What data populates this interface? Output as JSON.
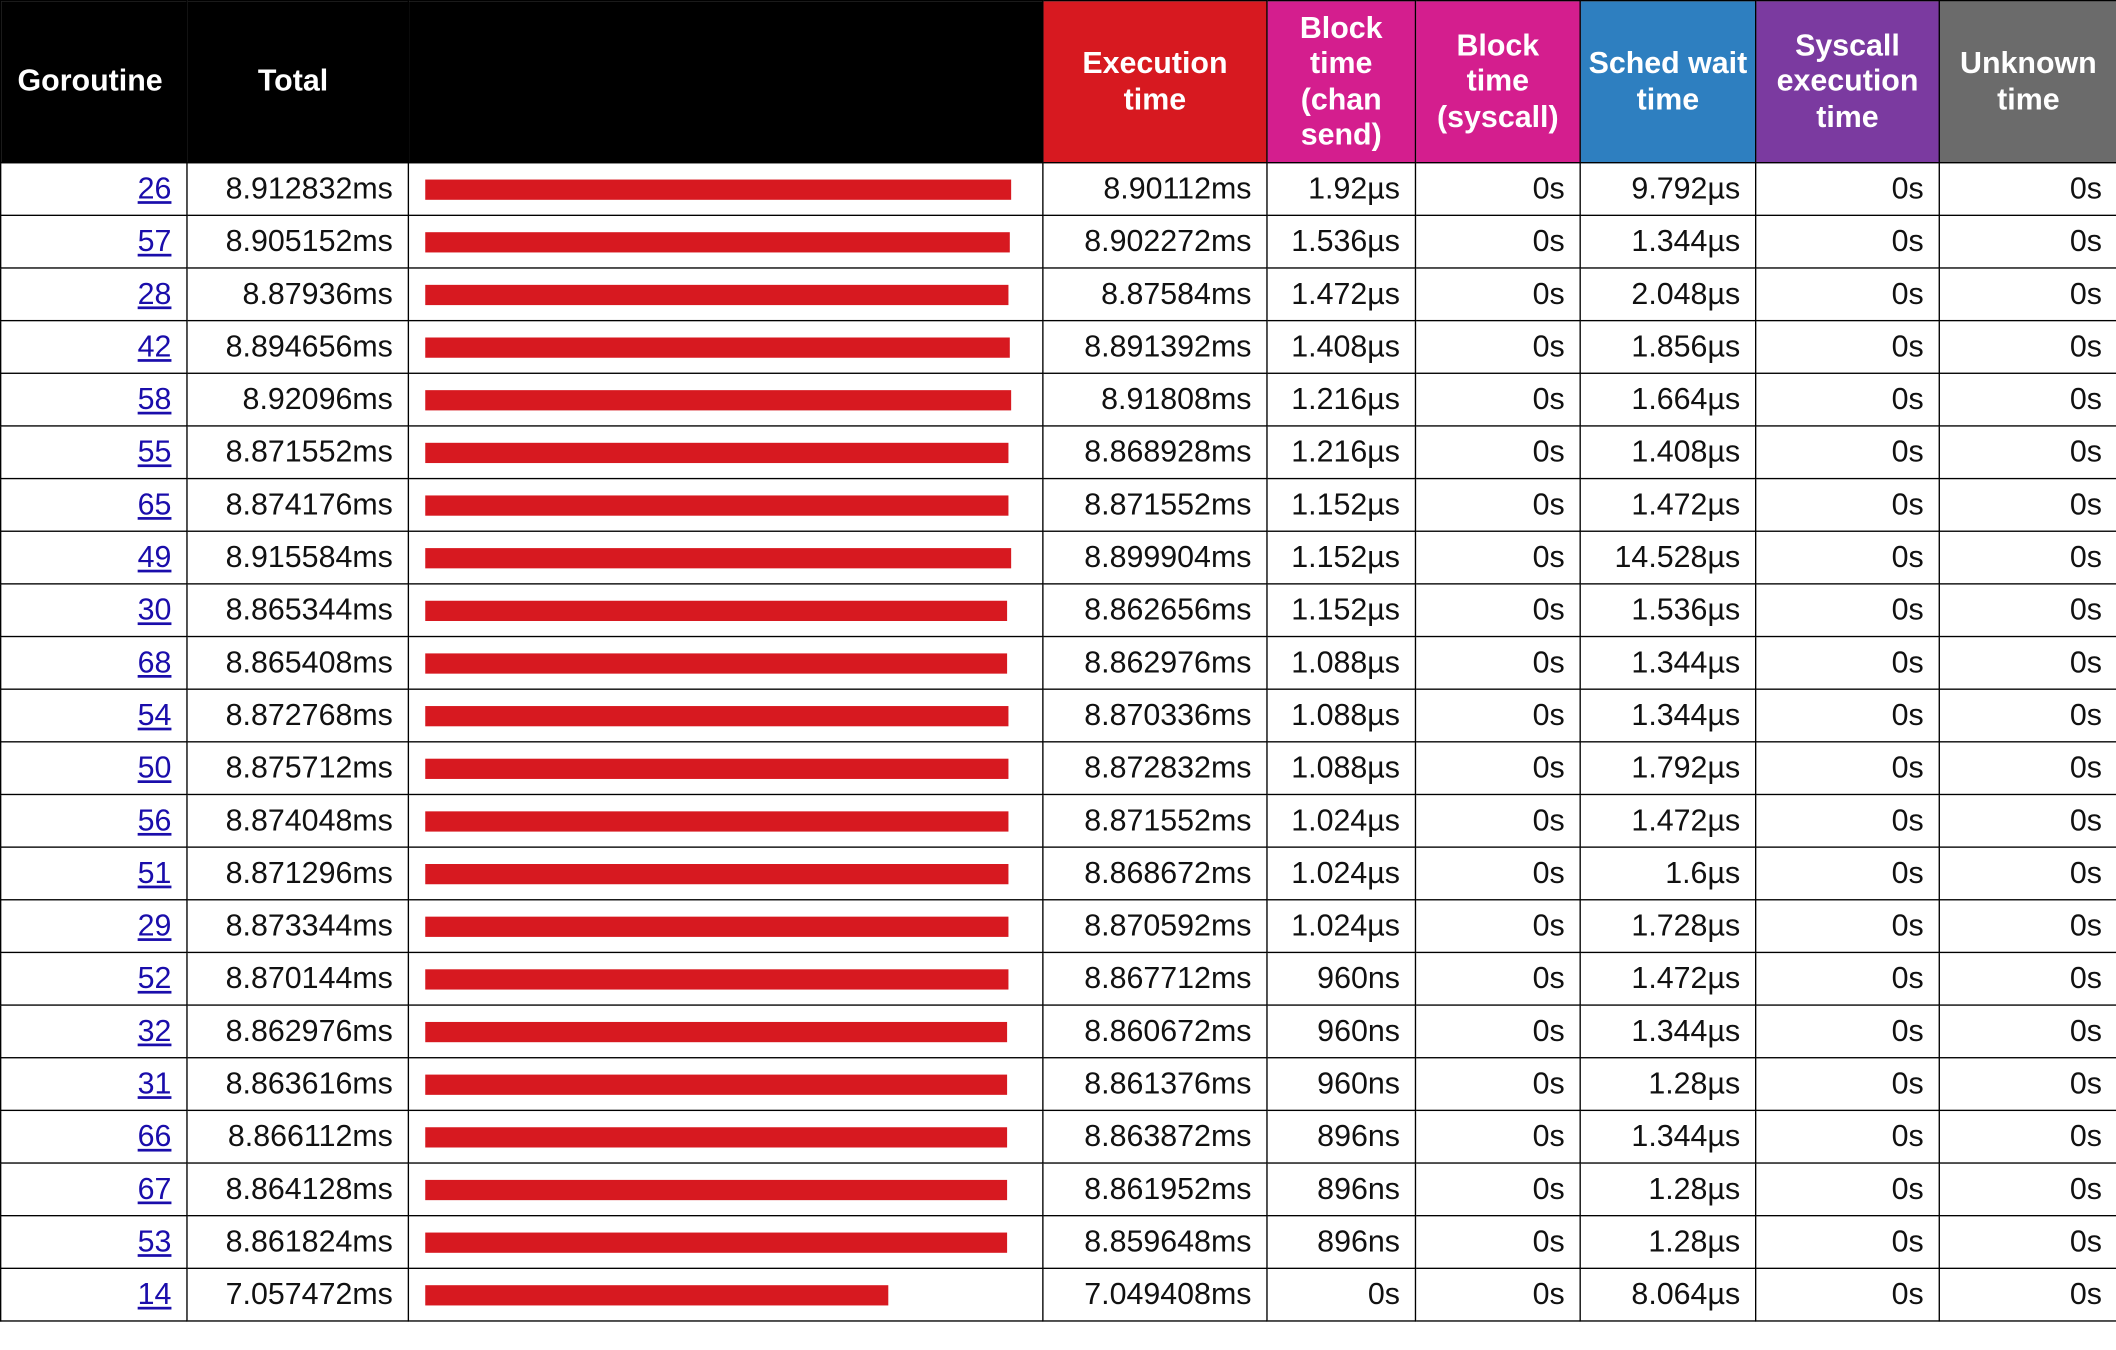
{
  "header": {
    "goroutine": "Goroutine",
    "total": "Total",
    "execution_time": "Execution time",
    "block_chan_send": "Block time (chan send)",
    "block_syscall": "Block time (syscall)",
    "sched_wait": "Sched wait time",
    "syscall_execution": "Syscall execution time",
    "unknown": "Unknown time"
  },
  "colors": {
    "execution": "#d71920",
    "block_chan_send": "#d41e8e",
    "block_syscall": "#d41e8e",
    "sched_wait": "#2e7fc0",
    "syscall_execution": "#7b3aa0",
    "unknown": "#6b6b6b",
    "header_bg": "#000000",
    "bar": "#d71920"
  },
  "rows": [
    {
      "id": "26",
      "total": "8.912832ms",
      "exec": "8.90112ms",
      "block_chan": "1.92µs",
      "block_syscall": "0s",
      "sched": "9.792µs",
      "syscall": "0s",
      "unknown": "0s",
      "bar_ms": 8.912832
    },
    {
      "id": "57",
      "total": "8.905152ms",
      "exec": "8.902272ms",
      "block_chan": "1.536µs",
      "block_syscall": "0s",
      "sched": "1.344µs",
      "syscall": "0s",
      "unknown": "0s",
      "bar_ms": 8.905152
    },
    {
      "id": "28",
      "total": "8.87936ms",
      "exec": "8.87584ms",
      "block_chan": "1.472µs",
      "block_syscall": "0s",
      "sched": "2.048µs",
      "syscall": "0s",
      "unknown": "0s",
      "bar_ms": 8.87936
    },
    {
      "id": "42",
      "total": "8.894656ms",
      "exec": "8.891392ms",
      "block_chan": "1.408µs",
      "block_syscall": "0s",
      "sched": "1.856µs",
      "syscall": "0s",
      "unknown": "0s",
      "bar_ms": 8.894656
    },
    {
      "id": "58",
      "total": "8.92096ms",
      "exec": "8.91808ms",
      "block_chan": "1.216µs",
      "block_syscall": "0s",
      "sched": "1.664µs",
      "syscall": "0s",
      "unknown": "0s",
      "bar_ms": 8.92096
    },
    {
      "id": "55",
      "total": "8.871552ms",
      "exec": "8.868928ms",
      "block_chan": "1.216µs",
      "block_syscall": "0s",
      "sched": "1.408µs",
      "syscall": "0s",
      "unknown": "0s",
      "bar_ms": 8.871552
    },
    {
      "id": "65",
      "total": "8.874176ms",
      "exec": "8.871552ms",
      "block_chan": "1.152µs",
      "block_syscall": "0s",
      "sched": "1.472µs",
      "syscall": "0s",
      "unknown": "0s",
      "bar_ms": 8.874176
    },
    {
      "id": "49",
      "total": "8.915584ms",
      "exec": "8.899904ms",
      "block_chan": "1.152µs",
      "block_syscall": "0s",
      "sched": "14.528µs",
      "syscall": "0s",
      "unknown": "0s",
      "bar_ms": 8.915584
    },
    {
      "id": "30",
      "total": "8.865344ms",
      "exec": "8.862656ms",
      "block_chan": "1.152µs",
      "block_syscall": "0s",
      "sched": "1.536µs",
      "syscall": "0s",
      "unknown": "0s",
      "bar_ms": 8.865344
    },
    {
      "id": "68",
      "total": "8.865408ms",
      "exec": "8.862976ms",
      "block_chan": "1.088µs",
      "block_syscall": "0s",
      "sched": "1.344µs",
      "syscall": "0s",
      "unknown": "0s",
      "bar_ms": 8.865408
    },
    {
      "id": "54",
      "total": "8.872768ms",
      "exec": "8.870336ms",
      "block_chan": "1.088µs",
      "block_syscall": "0s",
      "sched": "1.344µs",
      "syscall": "0s",
      "unknown": "0s",
      "bar_ms": 8.872768
    },
    {
      "id": "50",
      "total": "8.875712ms",
      "exec": "8.872832ms",
      "block_chan": "1.088µs",
      "block_syscall": "0s",
      "sched": "1.792µs",
      "syscall": "0s",
      "unknown": "0s",
      "bar_ms": 8.875712
    },
    {
      "id": "56",
      "total": "8.874048ms",
      "exec": "8.871552ms",
      "block_chan": "1.024µs",
      "block_syscall": "0s",
      "sched": "1.472µs",
      "syscall": "0s",
      "unknown": "0s",
      "bar_ms": 8.874048
    },
    {
      "id": "51",
      "total": "8.871296ms",
      "exec": "8.868672ms",
      "block_chan": "1.024µs",
      "block_syscall": "0s",
      "sched": "1.6µs",
      "syscall": "0s",
      "unknown": "0s",
      "bar_ms": 8.871296
    },
    {
      "id": "29",
      "total": "8.873344ms",
      "exec": "8.870592ms",
      "block_chan": "1.024µs",
      "block_syscall": "0s",
      "sched": "1.728µs",
      "syscall": "0s",
      "unknown": "0s",
      "bar_ms": 8.873344
    },
    {
      "id": "52",
      "total": "8.870144ms",
      "exec": "8.867712ms",
      "block_chan": "960ns",
      "block_syscall": "0s",
      "sched": "1.472µs",
      "syscall": "0s",
      "unknown": "0s",
      "bar_ms": 8.870144
    },
    {
      "id": "32",
      "total": "8.862976ms",
      "exec": "8.860672ms",
      "block_chan": "960ns",
      "block_syscall": "0s",
      "sched": "1.344µs",
      "syscall": "0s",
      "unknown": "0s",
      "bar_ms": 8.862976
    },
    {
      "id": "31",
      "total": "8.863616ms",
      "exec": "8.861376ms",
      "block_chan": "960ns",
      "block_syscall": "0s",
      "sched": "1.28µs",
      "syscall": "0s",
      "unknown": "0s",
      "bar_ms": 8.863616
    },
    {
      "id": "66",
      "total": "8.866112ms",
      "exec": "8.863872ms",
      "block_chan": "896ns",
      "block_syscall": "0s",
      "sched": "1.344µs",
      "syscall": "0s",
      "unknown": "0s",
      "bar_ms": 8.866112
    },
    {
      "id": "67",
      "total": "8.864128ms",
      "exec": "8.861952ms",
      "block_chan": "896ns",
      "block_syscall": "0s",
      "sched": "1.28µs",
      "syscall": "0s",
      "unknown": "0s",
      "bar_ms": 8.864128
    },
    {
      "id": "53",
      "total": "8.861824ms",
      "exec": "8.859648ms",
      "block_chan": "896ns",
      "block_syscall": "0s",
      "sched": "1.28µs",
      "syscall": "0s",
      "unknown": "0s",
      "bar_ms": 8.861824
    },
    {
      "id": "14",
      "total": "7.057472ms",
      "exec": "7.049408ms",
      "block_chan": "0s",
      "block_syscall": "0s",
      "sched": "8.064µs",
      "syscall": "0s",
      "unknown": "0s",
      "bar_ms": 7.057472
    }
  ]
}
